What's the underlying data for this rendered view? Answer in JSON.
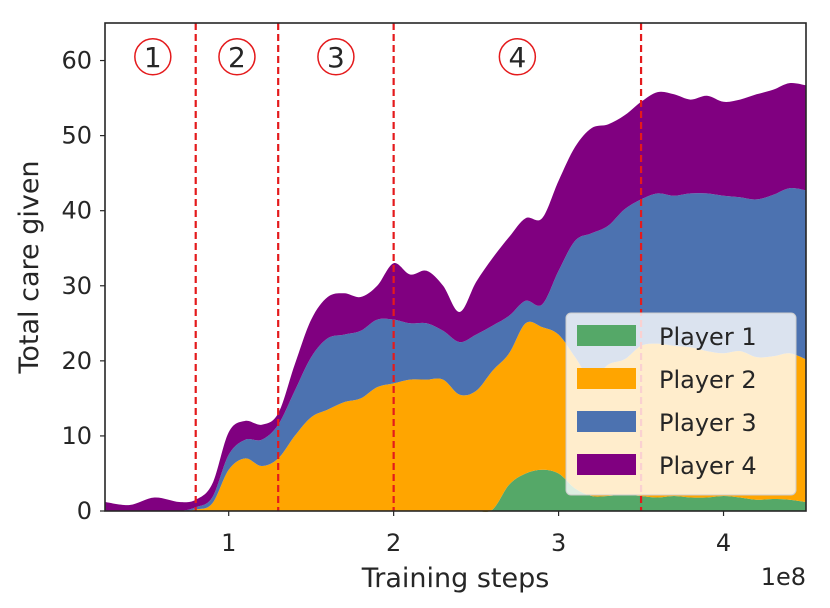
{
  "chart_data": {
    "type": "area",
    "stacked": true,
    "xlabel": "Training steps",
    "ylabel": "Total care given",
    "x_offset_label": "1e8",
    "xlim": [
      0.25,
      4.5
    ],
    "ylim": [
      0,
      65
    ],
    "x_ticks": [
      1,
      2,
      3,
      4
    ],
    "x_tick_labels": [
      "1",
      "2",
      "3",
      "4"
    ],
    "y_ticks": [
      0,
      10,
      20,
      30,
      40,
      50,
      60
    ],
    "y_tick_labels": [
      "0",
      "10",
      "20",
      "30",
      "40",
      "50",
      "60"
    ],
    "grid": false,
    "legend_position": "lower-right",
    "phase_lines": [
      0.8,
      1.3,
      2.0,
      3.5
    ],
    "phase_labels": [
      {
        "label": "1",
        "x": 0.54,
        "y": 60.5
      },
      {
        "label": "2",
        "x": 1.05,
        "y": 60.5
      },
      {
        "label": "3",
        "x": 1.65,
        "y": 60.5
      },
      {
        "label": "4",
        "x": 2.75,
        "y": 60.5
      }
    ],
    "x": [
      0.25,
      0.4,
      0.55,
      0.7,
      0.8,
      0.9,
      1.0,
      1.1,
      1.2,
      1.3,
      1.4,
      1.5,
      1.6,
      1.7,
      1.8,
      1.9,
      2.0,
      2.1,
      2.2,
      2.3,
      2.4,
      2.5,
      2.6,
      2.7,
      2.8,
      2.9,
      3.0,
      3.1,
      3.2,
      3.3,
      3.4,
      3.5,
      3.6,
      3.7,
      3.8,
      3.9,
      4.0,
      4.1,
      4.2,
      4.3,
      4.4,
      4.5
    ],
    "series": [
      {
        "name": "Player 1",
        "color": "#55a868",
        "values": [
          0,
          0,
          0,
          0,
          0,
          0,
          0,
          0,
          0,
          0,
          0,
          0,
          0,
          0,
          0,
          0,
          0,
          0,
          0,
          0,
          0,
          0,
          0.2,
          3.5,
          5.0,
          5.5,
          5.0,
          3.0,
          2.0,
          2.0,
          2.2,
          2.0,
          1.8,
          2.0,
          1.8,
          1.8,
          2.0,
          1.8,
          1.5,
          1.6,
          1.5,
          1.2
        ]
      },
      {
        "name": "Player 2",
        "color": "#ffa500",
        "values": [
          0,
          0,
          0,
          0,
          0.2,
          1.0,
          5.5,
          7.0,
          6.0,
          7.0,
          10.0,
          12.5,
          13.5,
          14.5,
          15.0,
          16.5,
          17.0,
          17.5,
          17.5,
          17.5,
          15.5,
          16.0,
          18.5,
          17.5,
          20.0,
          19.0,
          18.5,
          17.5,
          15.5,
          17.5,
          18.0,
          20.0,
          20.5,
          20.0,
          20.0,
          19.5,
          19.0,
          19.5,
          19.0,
          19.0,
          19.5,
          19.0
        ]
      },
      {
        "name": "Player 3",
        "color": "#4c72b0",
        "values": [
          0,
          0,
          0,
          0,
          0.3,
          0.8,
          2.0,
          2.5,
          3.5,
          4.5,
          6.0,
          8.0,
          9.5,
          9.0,
          9.0,
          9.0,
          8.5,
          7.5,
          7.5,
          6.5,
          7.0,
          7.5,
          6.0,
          5.0,
          3.0,
          3.0,
          8.5,
          15.5,
          19.5,
          18.5,
          20.0,
          19.5,
          20.0,
          20.0,
          20.5,
          21.0,
          21.0,
          20.5,
          21.0,
          21.5,
          22.0,
          22.5
        ]
      },
      {
        "name": "Player 4",
        "color": "#800080",
        "values": [
          1.2,
          0.8,
          1.8,
          1.2,
          1.0,
          1.8,
          3.0,
          2.5,
          2.0,
          1.5,
          3.5,
          5.0,
          5.5,
          5.5,
          4.5,
          4.5,
          7.5,
          6.5,
          7.0,
          6.0,
          4.0,
          7.0,
          9.0,
          10.5,
          11.0,
          11.5,
          12.0,
          12.5,
          14.0,
          13.5,
          12.5,
          13.0,
          13.5,
          13.5,
          12.5,
          13.0,
          12.5,
          13.0,
          14.0,
          14.0,
          14.0,
          14.0
        ]
      }
    ]
  }
}
